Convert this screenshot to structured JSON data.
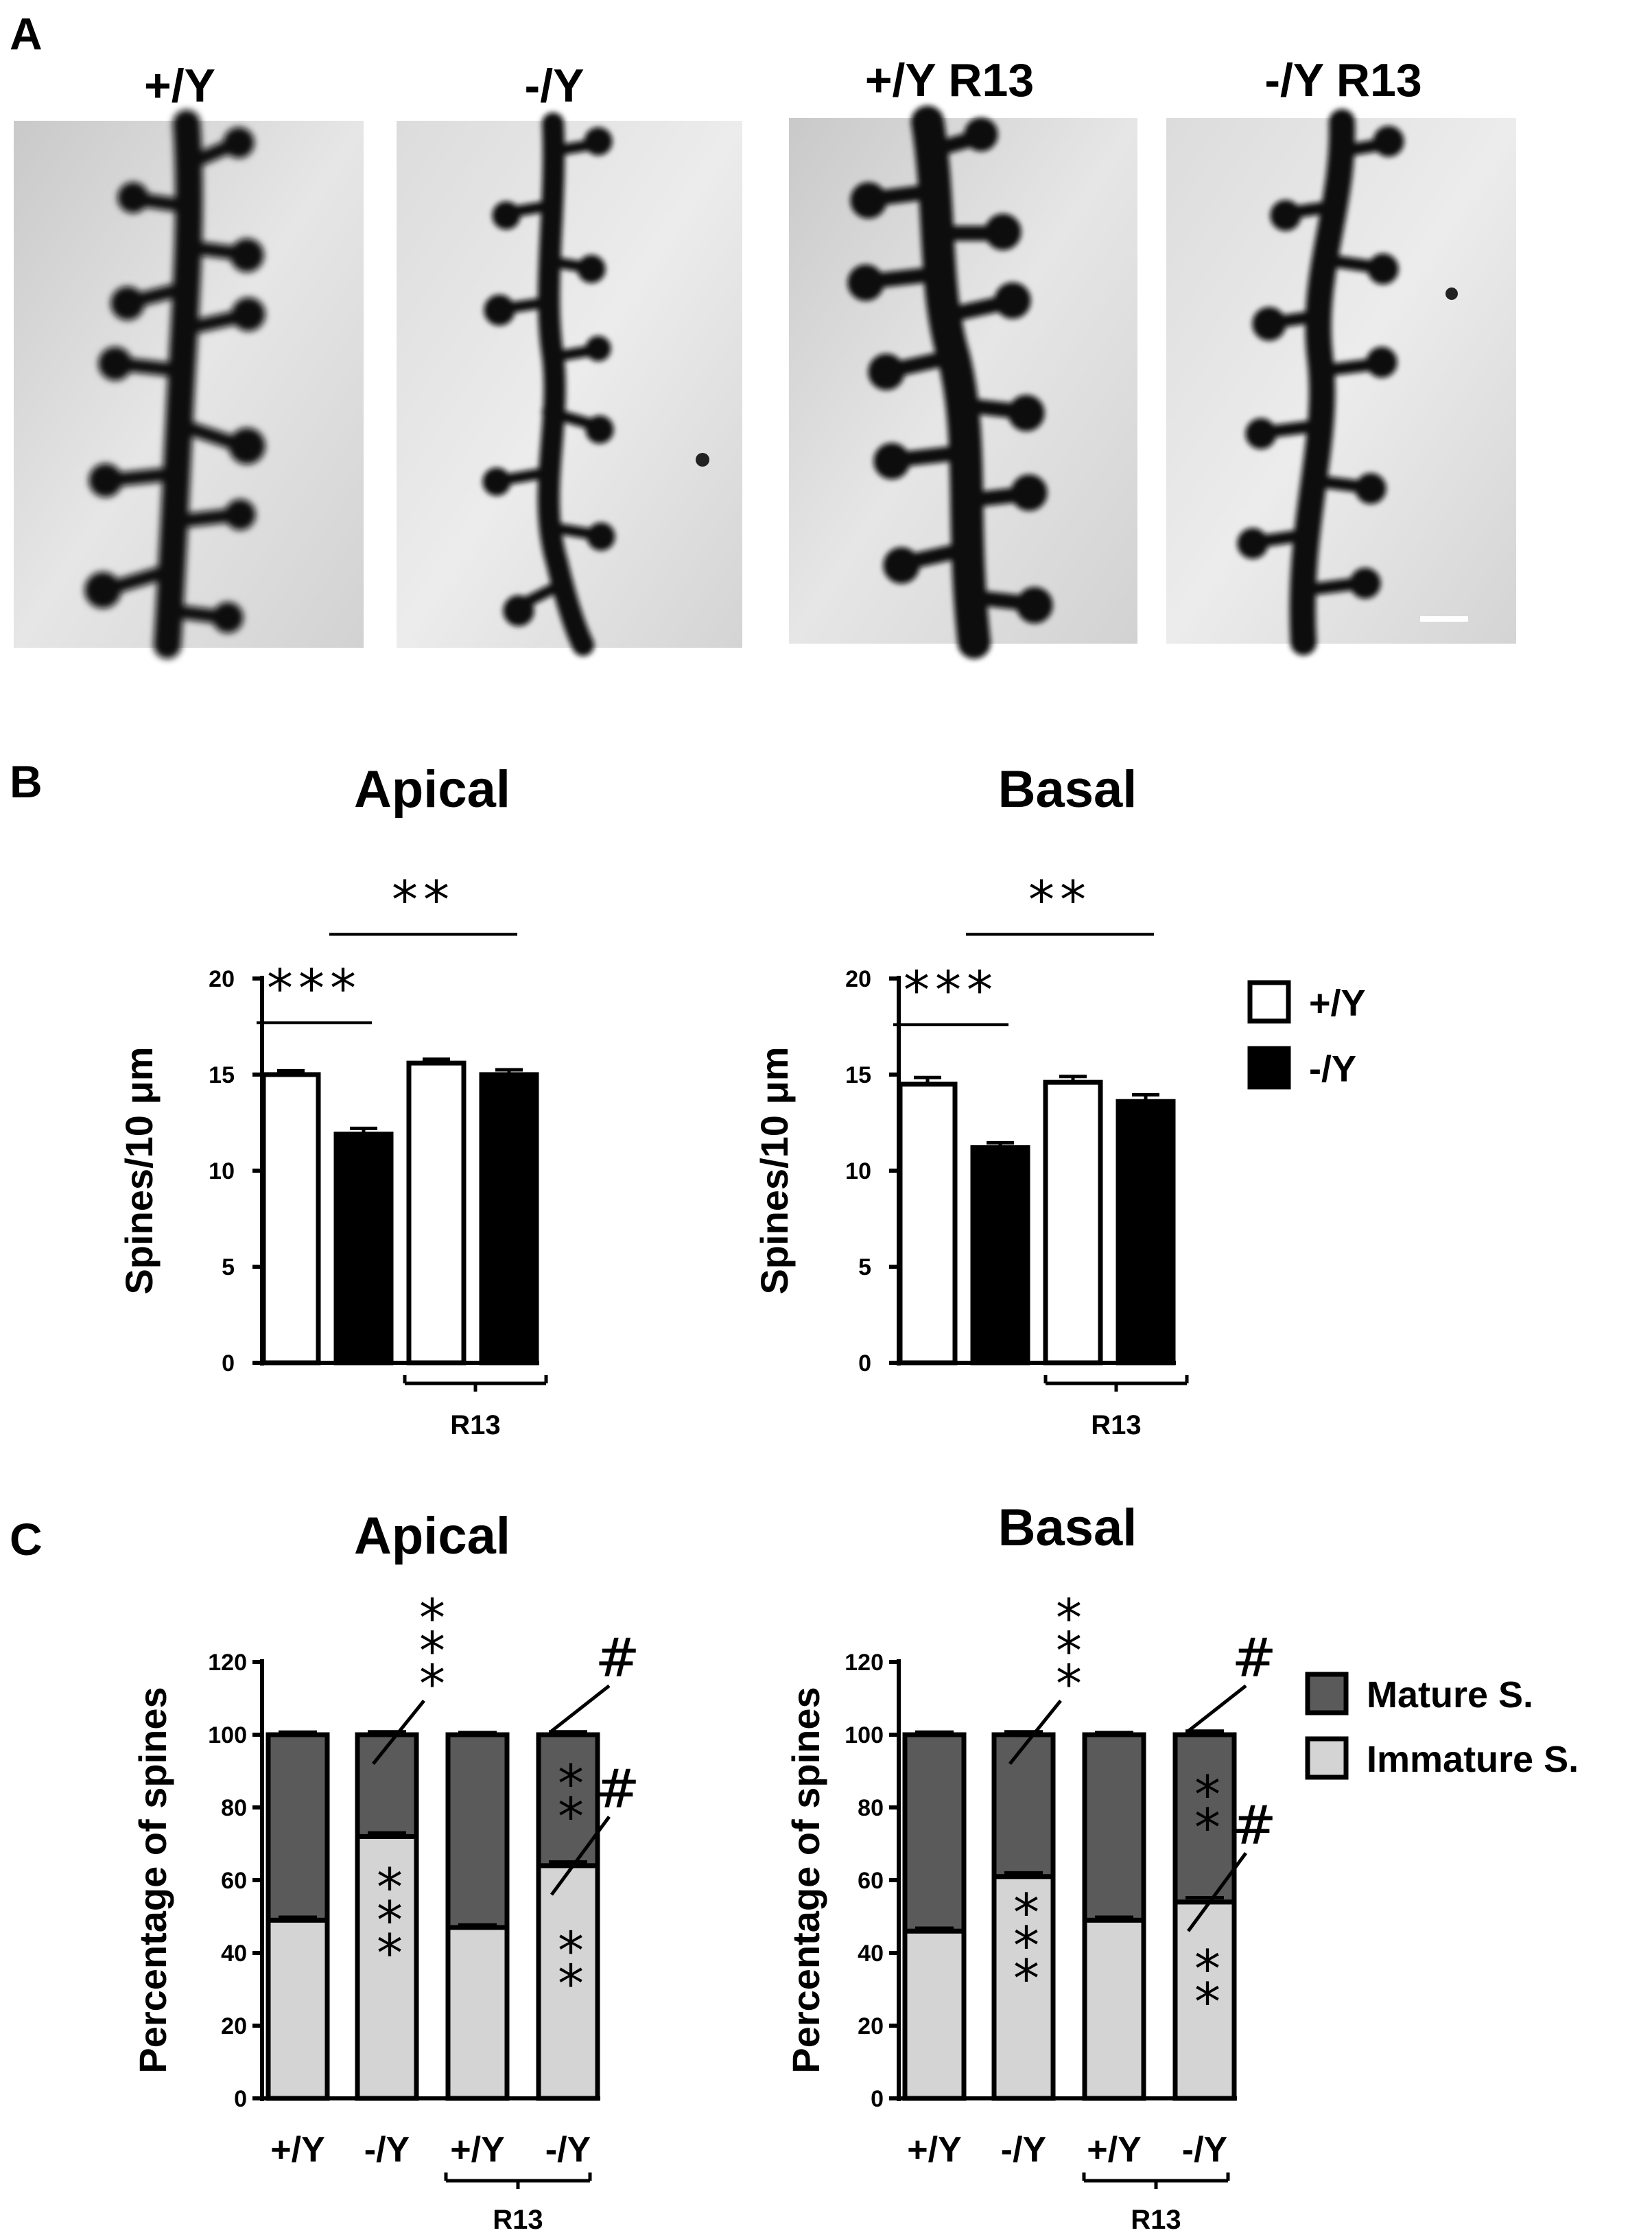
{
  "panel_a": {
    "letter": "A",
    "image_labels": [
      "+/Y",
      "-/Y",
      "+/Y R13",
      "-/Y R13"
    ]
  },
  "panel_b": {
    "letter": "B"
  },
  "panel_c": {
    "letter": "C"
  },
  "legend_b": {
    "items": [
      "+/Y",
      "-/Y"
    ],
    "colors": [
      "#ffffff",
      "#000000"
    ]
  },
  "legend_c": {
    "items": [
      "Mature S.",
      "Immature S."
    ],
    "colors": [
      "#5a5a5a",
      "#d4d4d4"
    ]
  },
  "chart_data": [
    {
      "id": "b_apical",
      "type": "bar",
      "title": "Apical",
      "ylabel": "Spines/10 μm",
      "ylim": [
        0,
        20
      ],
      "yticks": [
        "0",
        "5",
        "10",
        "15",
        "20"
      ],
      "series": [
        {
          "name": "+/Y",
          "values": [
            15.0,
            null,
            15.6,
            null
          ],
          "errors": [
            0.2,
            null,
            0.2,
            null
          ],
          "color": "#ffffff"
        },
        {
          "name": "-/Y",
          "values": [
            null,
            11.9,
            null,
            15.0
          ],
          "errors": [
            null,
            0.3,
            null,
            0.25
          ],
          "color": "#000000"
        }
      ],
      "group_label": "R13",
      "significance": [
        {
          "label": "***",
          "from_bar": 0,
          "to_bar": 1,
          "y": 17.7
        },
        {
          "label": "**",
          "from_bar": 1,
          "to_bar": 3,
          "y": 22.3
        }
      ]
    },
    {
      "id": "b_basal",
      "type": "bar",
      "title": "Basal",
      "ylabel": "Spines/10 μm",
      "ylim": [
        0,
        20
      ],
      "yticks": [
        "0",
        "5",
        "10",
        "15",
        "20"
      ],
      "series": [
        {
          "name": "+/Y",
          "values": [
            14.5,
            null,
            14.6,
            null
          ],
          "errors": [
            0.35,
            null,
            0.3,
            null
          ],
          "color": "#ffffff"
        },
        {
          "name": "-/Y",
          "values": [
            null,
            11.2,
            null,
            13.6
          ],
          "errors": [
            null,
            0.25,
            null,
            0.35
          ],
          "color": "#000000"
        }
      ],
      "group_label": "R13",
      "significance": [
        {
          "label": "***",
          "from_bar": 0,
          "to_bar": 1,
          "y": 17.6
        },
        {
          "label": "**",
          "from_bar": 1,
          "to_bar": 3,
          "y": 22.3
        }
      ]
    },
    {
      "id": "c_apical",
      "type": "bar",
      "stacked": true,
      "title": "Apical",
      "ylabel": "Percentage of spines",
      "ylim": [
        0,
        120
      ],
      "yticks": [
        "0",
        "20",
        "40",
        "60",
        "80",
        "100",
        "120"
      ],
      "categories": [
        "+/Y",
        "-/Y",
        "+/Y",
        "-/Y"
      ],
      "series": [
        {
          "name": "Immature S.",
          "values": [
            49,
            72,
            47,
            64
          ],
          "errors": [
            0.8,
            1.0,
            0.7,
            1.0
          ],
          "color": "#d4d4d4"
        },
        {
          "name": "Mature S.",
          "values": [
            51,
            28,
            53,
            36
          ],
          "errors": [
            0.7,
            0.8,
            0.6,
            0.8
          ],
          "color": "#5a5a5a"
        }
      ],
      "group_label": "R13",
      "annotations": [
        {
          "label": "***",
          "bar": 1,
          "segment": "mature",
          "orientation": "vertical",
          "pointer": true,
          "y_top": 134,
          "y_bottom": 112
        },
        {
          "label": "***",
          "bar": 1,
          "segment": "immature",
          "orientation": "vertical",
          "y_center": 49
        },
        {
          "label": "#",
          "bar": 3,
          "segment": "mature",
          "pointer": true,
          "y_label": 121
        },
        {
          "label": "**",
          "bar": 3,
          "segment": "mature",
          "orientation": "vertical",
          "y_center": 82
        },
        {
          "label": "#",
          "bar": 3,
          "segment": "immature",
          "pointer": true,
          "y_label": 85
        },
        {
          "label": "**",
          "bar": 3,
          "segment": "immature",
          "orientation": "vertical",
          "y_center": 36
        }
      ]
    },
    {
      "id": "c_basal",
      "type": "bar",
      "stacked": true,
      "title": "Basal",
      "ylabel": "Percentage of spines",
      "ylim": [
        0,
        120
      ],
      "yticks": [
        "0",
        "20",
        "40",
        "60",
        "80",
        "100",
        "120"
      ],
      "categories": [
        "+/Y",
        "-/Y",
        "+/Y",
        "-/Y"
      ],
      "series": [
        {
          "name": "Immature S.",
          "values": [
            46,
            61,
            49,
            54
          ],
          "errors": [
            0.8,
            1.0,
            0.8,
            1.2
          ],
          "color": "#d4d4d4"
        },
        {
          "name": "Mature S.",
          "values": [
            54,
            39,
            51,
            46
          ],
          "errors": [
            0.7,
            0.8,
            0.6,
            1.0
          ],
          "color": "#5a5a5a"
        }
      ],
      "group_label": "R13",
      "annotations": [
        {
          "label": "***",
          "bar": 1,
          "segment": "mature",
          "orientation": "vertical",
          "pointer": true,
          "y_top": 134,
          "y_bottom": 112
        },
        {
          "label": "***",
          "bar": 1,
          "segment": "immature",
          "orientation": "vertical",
          "y_center": 42
        },
        {
          "label": "#",
          "bar": 3,
          "segment": "mature",
          "pointer": true,
          "y_label": 121
        },
        {
          "label": "**",
          "bar": 3,
          "segment": "mature",
          "orientation": "vertical",
          "y_center": 79
        },
        {
          "label": "#",
          "bar": 3,
          "segment": "immature",
          "pointer": true,
          "y_label": 75
        },
        {
          "label": "**",
          "bar": 3,
          "segment": "immature",
          "orientation": "vertical",
          "y_center": 31
        }
      ]
    }
  ]
}
